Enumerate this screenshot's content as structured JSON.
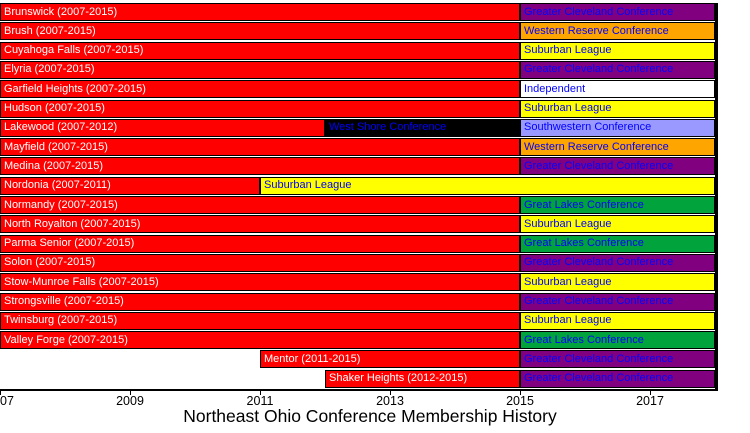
{
  "chart_data": {
    "type": "timeline",
    "title": "Northeast Ohio Conference Membership History",
    "x_axis": {
      "min": 2007,
      "max": 2018,
      "ticks": [
        {
          "year": 2007,
          "label": "07",
          "align": "left"
        },
        {
          "year": 2009,
          "label": "2009"
        },
        {
          "year": 2011,
          "label": "2011"
        },
        {
          "year": 2013,
          "label": "2013"
        },
        {
          "year": 2015,
          "label": "2015"
        },
        {
          "year": 2017,
          "label": "2017"
        }
      ]
    },
    "conference_colors": {
      "Northeast Ohio Conference": "#ff0000",
      "Greater Cleveland Conference": "#800080",
      "Western Reserve Conference": "#ffa500",
      "Suburban League": "#ffff00",
      "Independent": "#ffffff",
      "West Shore Conference": "#000000",
      "Southwestern Conference": "#9999ff",
      "Great Lakes Conference": "#00a33c"
    },
    "rows": [
      {
        "school": "Brunswick",
        "segments": [
          {
            "start": 2007,
            "end": 2015,
            "label": "Brunswick (2007-2015)",
            "color": "#ff0000",
            "text_color": "#ffffff"
          },
          {
            "start": 2015,
            "end": 2018,
            "label": "Greater Cleveland Conference",
            "color": "#800080",
            "text_color": "#0000ff"
          }
        ]
      },
      {
        "school": "Brush",
        "segments": [
          {
            "start": 2007,
            "end": 2015,
            "label": "Brush (2007-2015)",
            "color": "#ff0000",
            "text_color": "#ffffff"
          },
          {
            "start": 2015,
            "end": 2018,
            "label": "Western Reserve Conference",
            "color": "#ffa500",
            "text_color": "#0000ff"
          }
        ]
      },
      {
        "school": "Cuyahoga Falls",
        "segments": [
          {
            "start": 2007,
            "end": 2015,
            "label": "Cuyahoga Falls (2007-2015)",
            "color": "#ff0000",
            "text_color": "#ffffff"
          },
          {
            "start": 2015,
            "end": 2018,
            "label": "Suburban League",
            "color": "#ffff00",
            "text_color": "#0000ff"
          }
        ]
      },
      {
        "school": "Elyria",
        "segments": [
          {
            "start": 2007,
            "end": 2015,
            "label": "Elyria (2007-2015)",
            "color": "#ff0000",
            "text_color": "#ffffff"
          },
          {
            "start": 2015,
            "end": 2018,
            "label": "Greater Cleveland Conference",
            "color": "#800080",
            "text_color": "#0000ff"
          }
        ]
      },
      {
        "school": "Garfield Heights",
        "segments": [
          {
            "start": 2007,
            "end": 2015,
            "label": "Garfield Heights (2007-2015)",
            "color": "#ff0000",
            "text_color": "#ffffff"
          },
          {
            "start": 2015,
            "end": 2018,
            "label": "Independent",
            "color": "#ffffff",
            "text_color": "#0000ff"
          }
        ]
      },
      {
        "school": "Hudson",
        "segments": [
          {
            "start": 2007,
            "end": 2015,
            "label": "Hudson (2007-2015)",
            "color": "#ff0000",
            "text_color": "#ffffff"
          },
          {
            "start": 2015,
            "end": 2018,
            "label": "Suburban League",
            "color": "#ffff00",
            "text_color": "#0000ff"
          }
        ]
      },
      {
        "school": "Lakewood",
        "segments": [
          {
            "start": 2007,
            "end": 2012,
            "label": "Lakewood (2007-2012)",
            "color": "#ff0000",
            "text_color": "#ffffff"
          },
          {
            "start": 2012,
            "end": 2015,
            "label": "West Shore Conference",
            "color": "#000000",
            "text_color": "#0000ff"
          },
          {
            "start": 2015,
            "end": 2018,
            "label": "Southwestern Conference",
            "color": "#9999ff",
            "text_color": "#0000ff"
          }
        ]
      },
      {
        "school": "Mayfield",
        "segments": [
          {
            "start": 2007,
            "end": 2015,
            "label": "Mayfield (2007-2015)",
            "color": "#ff0000",
            "text_color": "#ffffff"
          },
          {
            "start": 2015,
            "end": 2018,
            "label": "Western Reserve Conference",
            "color": "#ffa500",
            "text_color": "#0000ff"
          }
        ]
      },
      {
        "school": "Medina",
        "segments": [
          {
            "start": 2007,
            "end": 2015,
            "label": "Medina (2007-2015)",
            "color": "#ff0000",
            "text_color": "#ffffff"
          },
          {
            "start": 2015,
            "end": 2018,
            "label": "Greater Cleveland Conference",
            "color": "#800080",
            "text_color": "#0000ff"
          }
        ]
      },
      {
        "school": "Nordonia",
        "segments": [
          {
            "start": 2007,
            "end": 2011,
            "label": "Nordonia (2007-2011)",
            "color": "#ff0000",
            "text_color": "#ffffff"
          },
          {
            "start": 2011,
            "end": 2018,
            "label": "Suburban League",
            "color": "#ffff00",
            "text_color": "#0000ff"
          }
        ]
      },
      {
        "school": "Normandy",
        "segments": [
          {
            "start": 2007,
            "end": 2015,
            "label": "Normandy (2007-2015)",
            "color": "#ff0000",
            "text_color": "#ffffff"
          },
          {
            "start": 2015,
            "end": 2018,
            "label": "Great Lakes Conference",
            "color": "#00a33c",
            "text_color": "#0000ff"
          }
        ]
      },
      {
        "school": "North Royalton",
        "segments": [
          {
            "start": 2007,
            "end": 2015,
            "label": "North Royalton (2007-2015)",
            "color": "#ff0000",
            "text_color": "#ffffff"
          },
          {
            "start": 2015,
            "end": 2018,
            "label": "Suburban League",
            "color": "#ffff00",
            "text_color": "#0000ff"
          }
        ]
      },
      {
        "school": "Parma Senior",
        "segments": [
          {
            "start": 2007,
            "end": 2015,
            "label": "Parma Senior (2007-2015)",
            "color": "#ff0000",
            "text_color": "#ffffff"
          },
          {
            "start": 2015,
            "end": 2018,
            "label": "Great Lakes Conference",
            "color": "#00a33c",
            "text_color": "#0000ff"
          }
        ]
      },
      {
        "school": "Solon",
        "segments": [
          {
            "start": 2007,
            "end": 2015,
            "label": "Solon (2007-2015)",
            "color": "#ff0000",
            "text_color": "#ffffff"
          },
          {
            "start": 2015,
            "end": 2018,
            "label": "Greater Cleveland Conference",
            "color": "#800080",
            "text_color": "#0000ff"
          }
        ]
      },
      {
        "school": "Stow-Munroe Falls",
        "segments": [
          {
            "start": 2007,
            "end": 2015,
            "label": "Stow-Munroe Falls (2007-2015)",
            "color": "#ff0000",
            "text_color": "#ffffff"
          },
          {
            "start": 2015,
            "end": 2018,
            "label": "Suburban League",
            "color": "#ffff00",
            "text_color": "#0000ff"
          }
        ]
      },
      {
        "school": "Strongsville",
        "segments": [
          {
            "start": 2007,
            "end": 2015,
            "label": "Strongsville (2007-2015)",
            "color": "#ff0000",
            "text_color": "#ffffff"
          },
          {
            "start": 2015,
            "end": 2018,
            "label": "Greater Cleveland Conference",
            "color": "#800080",
            "text_color": "#0000ff"
          }
        ]
      },
      {
        "school": "Twinsburg",
        "segments": [
          {
            "start": 2007,
            "end": 2015,
            "label": "Twinsburg (2007-2015)",
            "color": "#ff0000",
            "text_color": "#ffffff"
          },
          {
            "start": 2015,
            "end": 2018,
            "label": "Suburban League",
            "color": "#ffff00",
            "text_color": "#0000ff"
          }
        ]
      },
      {
        "school": "Valley Forge",
        "segments": [
          {
            "start": 2007,
            "end": 2015,
            "label": "Valley Forge (2007-2015)",
            "color": "#ff0000",
            "text_color": "#ffffff"
          },
          {
            "start": 2015,
            "end": 2018,
            "label": "Great Lakes Conference",
            "color": "#00a33c",
            "text_color": "#0000ff"
          }
        ]
      },
      {
        "school": "Mentor",
        "segments": [
          {
            "start": 2011,
            "end": 2015,
            "label": "Mentor (2011-2015)",
            "color": "#ff0000",
            "text_color": "#ffffff"
          },
          {
            "start": 2015,
            "end": 2018,
            "label": "Greater Cleveland Conference",
            "color": "#800080",
            "text_color": "#0000ff"
          }
        ]
      },
      {
        "school": "Shaker Heights",
        "segments": [
          {
            "start": 2012,
            "end": 2015,
            "label": "Shaker Heights (2012-2015)",
            "color": "#ff0000",
            "text_color": "#ffffff"
          },
          {
            "start": 2015,
            "end": 2018,
            "label": "Greater Cleveland Conference",
            "color": "#800080",
            "text_color": "#0000ff"
          }
        ]
      }
    ]
  }
}
